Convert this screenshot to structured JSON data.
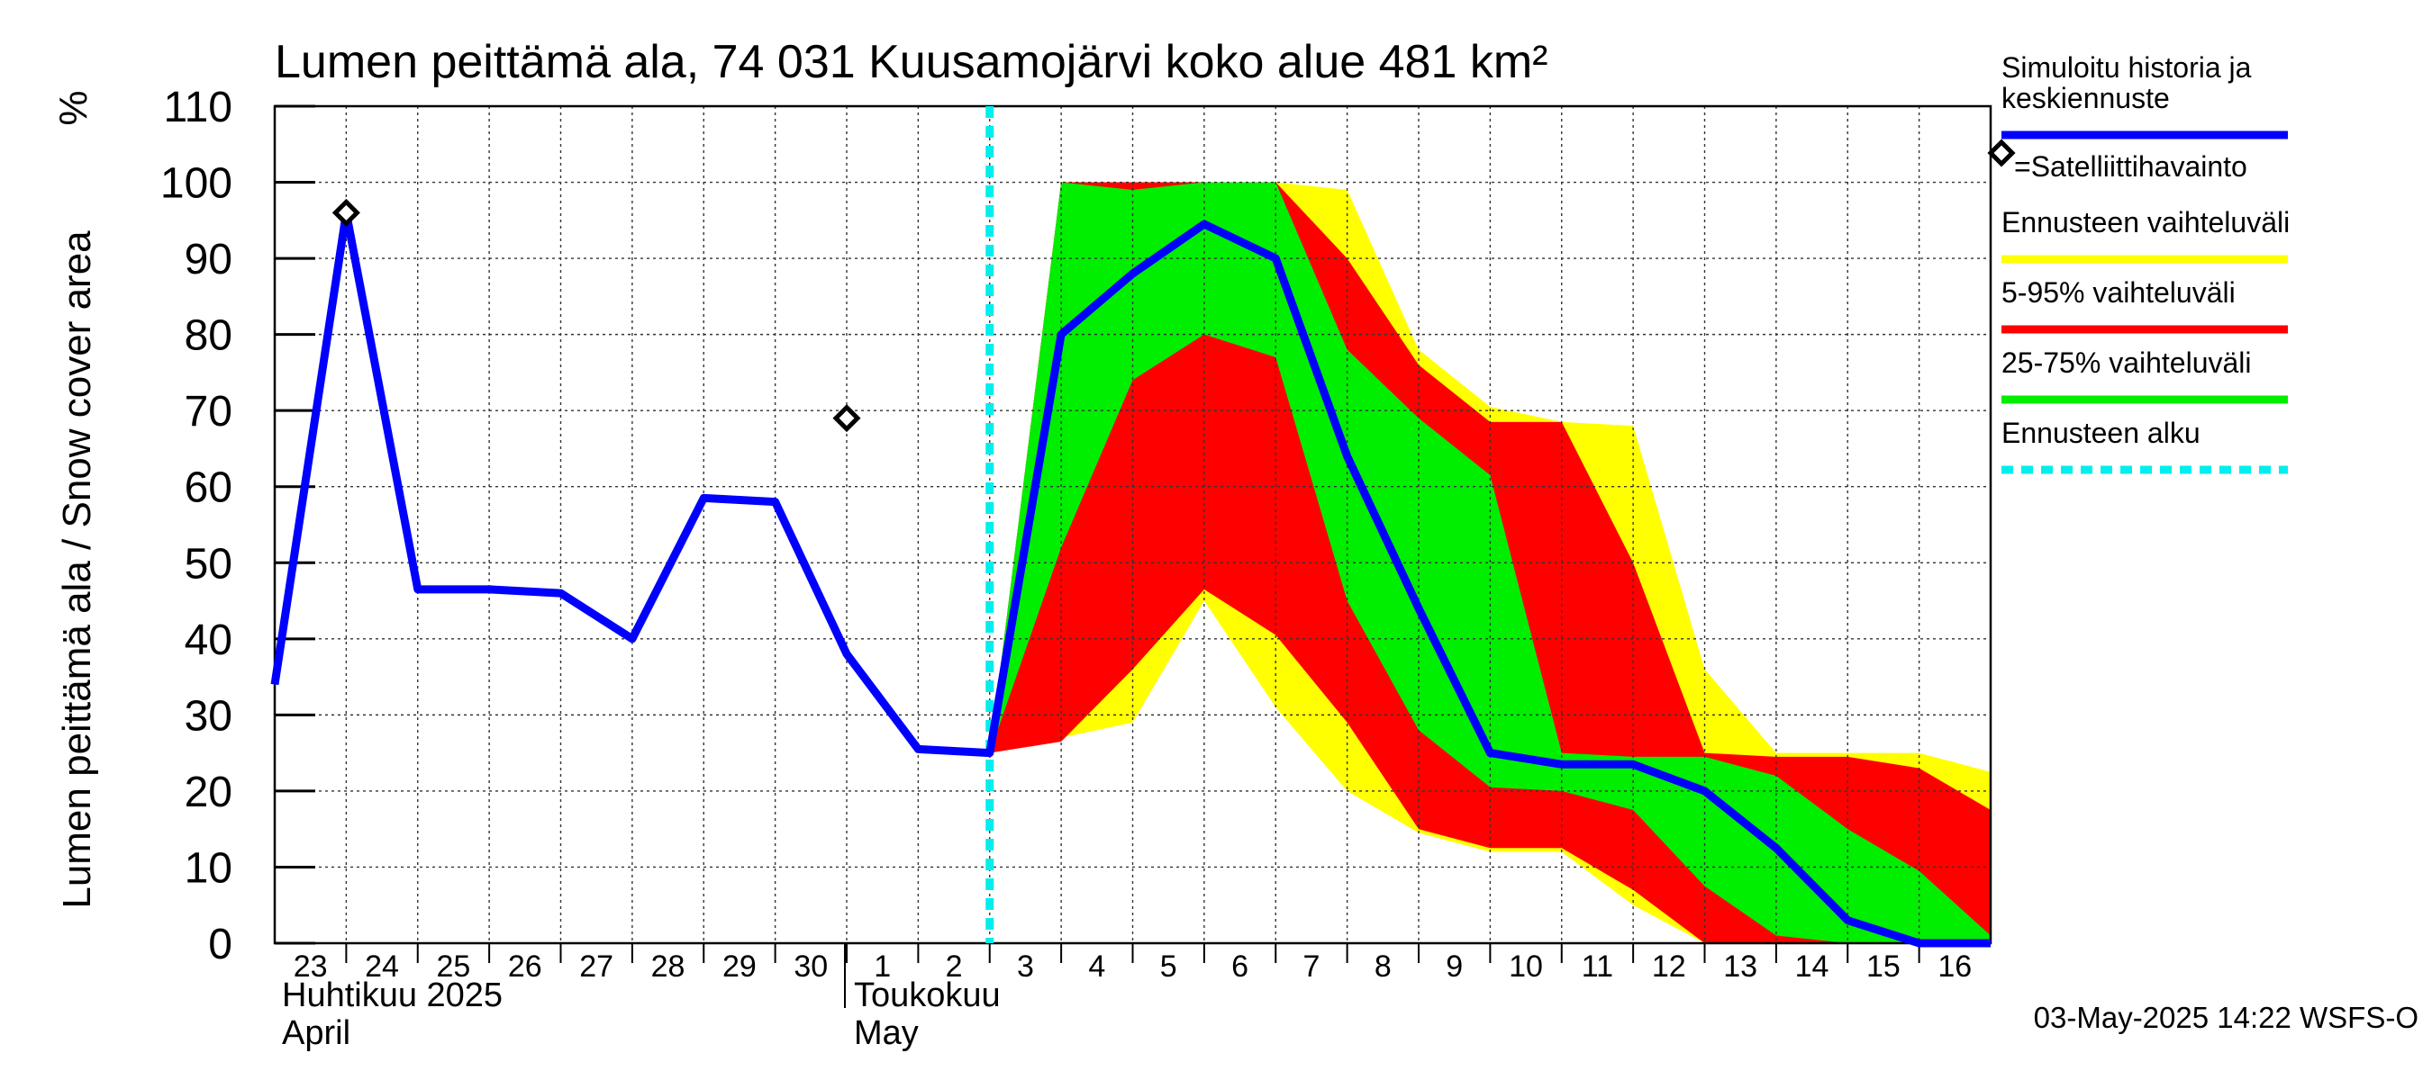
{
  "chart_data": {
    "type": "area",
    "title": "Lumen peittämä ala, 74 031 Kuusamojärvi koko alue 481 km²",
    "ylabel": "Lumen peittämä ala / Snow cover area",
    "yunit": "%",
    "ylim": [
      0,
      110
    ],
    "yticks": [
      0,
      10,
      20,
      30,
      40,
      50,
      60,
      70,
      80,
      90,
      100,
      110
    ],
    "xlim": [
      "2025-04-23",
      "2025-05-17"
    ],
    "x_tick_labels": [
      {
        "date": "2025-04-23",
        "label": "23"
      },
      {
        "date": "2025-04-24",
        "label": "24"
      },
      {
        "date": "2025-04-25",
        "label": "25"
      },
      {
        "date": "2025-04-26",
        "label": "26"
      },
      {
        "date": "2025-04-27",
        "label": "27"
      },
      {
        "date": "2025-04-28",
        "label": "28"
      },
      {
        "date": "2025-04-29",
        "label": "29"
      },
      {
        "date": "2025-04-30",
        "label": "30"
      },
      {
        "date": "2025-05-01",
        "label": "1"
      },
      {
        "date": "2025-05-02",
        "label": "2"
      },
      {
        "date": "2025-05-03",
        "label": "3"
      },
      {
        "date": "2025-05-04",
        "label": "4"
      },
      {
        "date": "2025-05-05",
        "label": "5"
      },
      {
        "date": "2025-05-06",
        "label": "6"
      },
      {
        "date": "2025-05-07",
        "label": "7"
      },
      {
        "date": "2025-05-08",
        "label": "8"
      },
      {
        "date": "2025-05-09",
        "label": "9"
      },
      {
        "date": "2025-05-10",
        "label": "10"
      },
      {
        "date": "2025-05-11",
        "label": "11"
      },
      {
        "date": "2025-05-12",
        "label": "12"
      },
      {
        "date": "2025-05-13",
        "label": "13"
      },
      {
        "date": "2025-05-14",
        "label": "14"
      },
      {
        "date": "2025-05-15",
        "label": "15"
      },
      {
        "date": "2025-05-16",
        "label": "16"
      }
    ],
    "month_labels": [
      {
        "date": "2025-04-23",
        "line1": "Huhtikuu  2025",
        "line2": "April"
      },
      {
        "date": "2025-05-01",
        "line1": "Toukokuu",
        "line2": "May"
      }
    ],
    "grid": true,
    "legend_position": "right",
    "forecast_start": "2025-05-03",
    "series": [
      {
        "name": "Simuloitu historia ja keskiennuste",
        "kind": "line",
        "color": "#0000ff",
        "x": [
          "2025-04-23",
          "2025-04-24",
          "2025-04-25",
          "2025-04-26",
          "2025-04-27",
          "2025-04-28",
          "2025-04-29",
          "2025-04-30",
          "2025-05-01",
          "2025-05-02",
          "2025-05-03",
          "2025-05-04",
          "2025-05-05",
          "2025-05-06",
          "2025-05-07",
          "2025-05-08",
          "2025-05-09",
          "2025-05-10",
          "2025-05-11",
          "2025-05-12",
          "2025-05-13",
          "2025-05-14",
          "2025-05-15",
          "2025-05-16",
          "2025-05-17"
        ],
        "y": [
          34,
          96,
          46.5,
          46.5,
          46,
          40,
          58.5,
          58,
          38,
          25.5,
          25,
          80,
          88,
          94.5,
          90,
          64,
          44,
          25,
          23.5,
          23.5,
          20,
          12.5,
          3,
          0,
          0
        ]
      },
      {
        "name": "Ennusteen vaihteluväli",
        "kind": "band",
        "color": "#ffff00",
        "x": [
          "2025-05-03",
          "2025-05-04",
          "2025-05-05",
          "2025-05-06",
          "2025-05-07",
          "2025-05-08",
          "2025-05-09",
          "2025-05-10",
          "2025-05-11",
          "2025-05-12",
          "2025-05-13",
          "2025-05-14",
          "2025-05-15",
          "2025-05-16",
          "2025-05-17"
        ],
        "upper": [
          25,
          100,
          100,
          100,
          100,
          99,
          78,
          70.5,
          68.5,
          68,
          36,
          25,
          25,
          25,
          22.5
        ],
        "lower": [
          25,
          27,
          29,
          45,
          31,
          20,
          14.5,
          12,
          12,
          5,
          0,
          0,
          0,
          0,
          0
        ]
      },
      {
        "name": "5-95% vaihteluväli",
        "kind": "band",
        "color": "#ff0000",
        "x": [
          "2025-05-03",
          "2025-05-04",
          "2025-05-05",
          "2025-05-06",
          "2025-05-07",
          "2025-05-08",
          "2025-05-09",
          "2025-05-10",
          "2025-05-11",
          "2025-05-12",
          "2025-05-13",
          "2025-05-14",
          "2025-05-15",
          "2025-05-16",
          "2025-05-17"
        ],
        "upper": [
          25,
          100,
          100,
          100,
          100,
          90,
          76,
          68.5,
          68.5,
          50,
          25,
          24.5,
          24.5,
          23,
          17.5
        ],
        "lower": [
          25,
          26.5,
          36,
          46.5,
          40.5,
          29,
          15,
          12.5,
          12.5,
          7,
          0,
          0,
          0,
          0,
          0
        ]
      },
      {
        "name": "25-75% vaihteluväli",
        "kind": "band",
        "color": "#00ee00",
        "x": [
          "2025-05-03",
          "2025-05-04",
          "2025-05-05",
          "2025-05-06",
          "2025-05-07",
          "2025-05-08",
          "2025-05-09",
          "2025-05-10",
          "2025-05-11",
          "2025-05-12",
          "2025-05-13",
          "2025-05-14",
          "2025-05-15",
          "2025-05-16",
          "2025-05-17"
        ],
        "upper": [
          25,
          100,
          99,
          100,
          100,
          78,
          69,
          61.5,
          25,
          24.5,
          24.5,
          22,
          15,
          9.5,
          1
        ],
        "lower": [
          25,
          52,
          74,
          80,
          77,
          45,
          28,
          20.5,
          20,
          17.5,
          7.5,
          1,
          0,
          0,
          0
        ]
      },
      {
        "name": "=Satelliittihavainto",
        "kind": "points",
        "color": "#000000",
        "x": [
          "2025-04-24",
          "2025-05-01"
        ],
        "y": [
          96,
          69
        ]
      },
      {
        "name": "Ennusteen alku",
        "kind": "vline",
        "color": "#00eeee",
        "x": [
          "2025-05-03"
        ]
      }
    ],
    "legend": [
      {
        "label": "Simuloitu historia ja\nkeskiennuste",
        "color": "#0000ff",
        "style": "line"
      },
      {
        "label": "=Satelliittihavainto",
        "color": "#000000",
        "style": "diamond"
      },
      {
        "label": "Ennusteen vaihteluväli",
        "color": "#ffff00",
        "style": "line"
      },
      {
        "label": "5-95% vaihteluväli",
        "color": "#ff0000",
        "style": "line"
      },
      {
        "label": "25-75% vaihteluväli",
        "color": "#00ee00",
        "style": "line"
      },
      {
        "label": "Ennusteen alku",
        "color": "#00eeee",
        "style": "dashed"
      }
    ],
    "footer": "03-May-2025 14:22 WSFS-O"
  }
}
